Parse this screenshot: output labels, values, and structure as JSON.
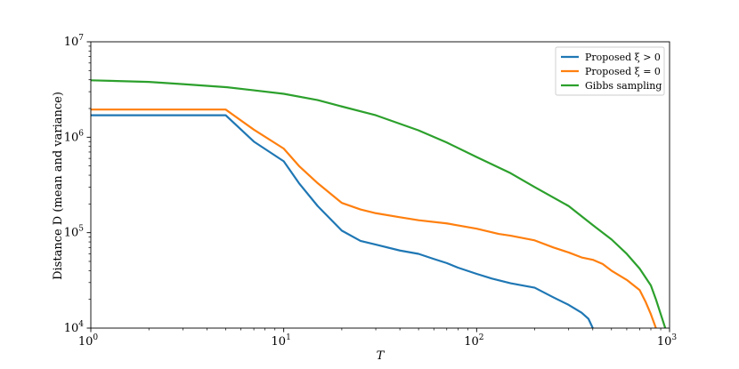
{
  "chart_data": {
    "type": "line",
    "xlabel": "T",
    "ylabel": "Distance D (mean and variance)",
    "xscale": "log",
    "yscale": "log",
    "xlim": [
      1,
      1000
    ],
    "ylim": [
      10000,
      10000000
    ],
    "x_ticks": [
      {
        "value": 1,
        "base": "10",
        "exp": "0"
      },
      {
        "value": 10,
        "base": "10",
        "exp": "1"
      },
      {
        "value": 100,
        "base": "10",
        "exp": "2"
      },
      {
        "value": 1000,
        "base": "10",
        "exp": "3"
      }
    ],
    "y_ticks": [
      {
        "value": 10000,
        "base": "10",
        "exp": "4"
      },
      {
        "value": 100000,
        "base": "10",
        "exp": "5"
      },
      {
        "value": 1000000,
        "base": "10",
        "exp": "6"
      },
      {
        "value": 10000000,
        "base": "10",
        "exp": "7"
      }
    ],
    "grid": false,
    "legend_position": "top-right",
    "series": [
      {
        "name": "Proposed ξ > 0",
        "color": "#1f77b4",
        "points": [
          [
            1,
            1700000
          ],
          [
            5,
            1700000
          ],
          [
            7,
            900000
          ],
          [
            10,
            560000
          ],
          [
            12,
            330000
          ],
          [
            15,
            190000
          ],
          [
            20,
            105000
          ],
          [
            25,
            82000
          ],
          [
            30,
            75000
          ],
          [
            40,
            65000
          ],
          [
            50,
            60000
          ],
          [
            60,
            53000
          ],
          [
            70,
            48000
          ],
          [
            80,
            43000
          ],
          [
            100,
            37000
          ],
          [
            120,
            33000
          ],
          [
            150,
            29500
          ],
          [
            200,
            26500
          ],
          [
            250,
            21000
          ],
          [
            300,
            17500
          ],
          [
            350,
            14500
          ],
          [
            380,
            12500
          ],
          [
            400,
            10000
          ]
        ]
      },
      {
        "name": "Proposed ξ = 0",
        "color": "#ff7f0e",
        "points": [
          [
            1,
            1950000
          ],
          [
            5,
            1950000
          ],
          [
            7,
            1200000
          ],
          [
            10,
            760000
          ],
          [
            12,
            500000
          ],
          [
            15,
            330000
          ],
          [
            20,
            205000
          ],
          [
            25,
            175000
          ],
          [
            30,
            160000
          ],
          [
            40,
            145000
          ],
          [
            50,
            135000
          ],
          [
            70,
            125000
          ],
          [
            100,
            110000
          ],
          [
            130,
            97000
          ],
          [
            150,
            93000
          ],
          [
            200,
            83000
          ],
          [
            250,
            70000
          ],
          [
            300,
            62000
          ],
          [
            350,
            55000
          ],
          [
            400,
            52000
          ],
          [
            450,
            47000
          ],
          [
            500,
            40000
          ],
          [
            600,
            32000
          ],
          [
            700,
            25000
          ],
          [
            750,
            19000
          ],
          [
            800,
            14000
          ],
          [
            850,
            10000
          ]
        ]
      },
      {
        "name": "Gibbs sampling",
        "color": "#2ca02c",
        "points": [
          [
            1,
            3950000
          ],
          [
            2,
            3800000
          ],
          [
            3,
            3600000
          ],
          [
            5,
            3350000
          ],
          [
            7,
            3100000
          ],
          [
            10,
            2850000
          ],
          [
            15,
            2450000
          ],
          [
            20,
            2100000
          ],
          [
            30,
            1700000
          ],
          [
            50,
            1180000
          ],
          [
            70,
            880000
          ],
          [
            100,
            620000
          ],
          [
            150,
            420000
          ],
          [
            200,
            300000
          ],
          [
            300,
            190000
          ],
          [
            400,
            120000
          ],
          [
            500,
            85000
          ],
          [
            600,
            60000
          ],
          [
            700,
            42000
          ],
          [
            800,
            28000
          ],
          [
            850,
            20000
          ],
          [
            900,
            14000
          ],
          [
            950,
            10000
          ]
        ]
      }
    ]
  }
}
